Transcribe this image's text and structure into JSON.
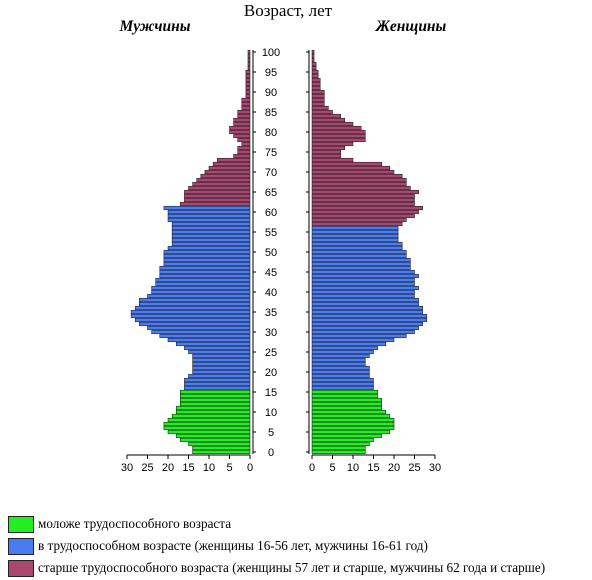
{
  "chart_data": {
    "type": "bar",
    "title": "Возраст, лет",
    "left_label": "Мужчины",
    "right_label": "Женщины",
    "xlim": [
      0,
      30
    ],
    "x_ticks": [
      0,
      5,
      10,
      15,
      20,
      25,
      30
    ],
    "age_ticks": [
      0,
      5,
      10,
      15,
      20,
      25,
      30,
      35,
      40,
      45,
      50,
      55,
      60,
      65,
      70,
      75,
      80,
      85,
      90,
      95,
      100
    ],
    "ages": [
      0,
      1,
      2,
      3,
      4,
      5,
      6,
      7,
      8,
      9,
      10,
      11,
      12,
      13,
      14,
      15,
      16,
      17,
      18,
      19,
      20,
      21,
      22,
      23,
      24,
      25,
      26,
      27,
      28,
      29,
      30,
      31,
      32,
      33,
      34,
      35,
      36,
      37,
      38,
      39,
      40,
      41,
      42,
      43,
      44,
      45,
      46,
      47,
      48,
      49,
      50,
      51,
      52,
      53,
      54,
      55,
      56,
      57,
      58,
      59,
      60,
      61,
      62,
      63,
      64,
      65,
      66,
      67,
      68,
      69,
      70,
      71,
      72,
      73,
      74,
      75,
      76,
      77,
      78,
      79,
      80,
      81,
      82,
      83,
      84,
      85,
      86,
      87,
      88,
      89,
      90,
      91,
      92,
      93,
      94,
      95,
      96,
      97,
      98,
      99,
      100
    ],
    "series": [
      {
        "name": "Мужчины",
        "values": [
          14,
          14,
          15,
          17,
          18,
          20,
          21,
          21,
          20,
          19,
          18,
          18,
          17,
          17,
          17,
          17,
          16,
          16,
          16,
          15,
          14,
          14,
          14,
          14,
          14,
          15,
          16,
          18,
          20,
          22,
          24,
          25,
          27,
          28,
          29,
          29,
          28,
          27,
          27,
          25,
          24,
          24,
          23,
          23,
          22,
          22,
          22,
          21,
          21,
          21,
          21,
          20,
          19,
          19,
          19,
          19,
          19,
          19,
          20,
          20,
          20,
          21,
          17,
          16,
          16,
          16,
          15,
          14,
          13,
          12,
          11,
          10,
          9,
          8,
          4,
          3,
          3,
          2,
          3,
          4,
          5,
          5,
          4,
          4,
          3,
          3,
          2,
          2,
          2,
          1,
          1,
          1,
          1,
          1,
          1,
          1,
          0.5,
          0.5,
          0.5,
          0.5,
          0.5
        ]
      },
      {
        "name": "Женщины",
        "values": [
          13,
          13,
          14,
          15,
          17,
          19,
          20,
          20,
          20,
          19,
          18,
          17,
          17,
          17,
          16,
          16,
          15,
          15,
          15,
          14,
          14,
          14,
          13,
          13,
          14,
          15,
          16,
          18,
          20,
          23,
          25,
          26,
          27,
          28,
          28,
          27,
          27,
          26,
          26,
          25,
          25,
          26,
          25,
          25,
          26,
          25,
          24,
          24,
          24,
          23,
          23,
          22,
          22,
          21,
          21,
          21,
          21,
          22,
          23,
          25,
          26,
          27,
          25,
          25,
          25,
          26,
          24,
          23,
          23,
          22,
          20,
          19,
          17,
          10,
          7,
          7,
          8,
          10,
          13,
          13,
          13,
          12,
          10,
          8,
          7,
          5,
          4,
          3,
          3,
          3,
          3,
          2,
          2,
          2,
          1.5,
          1.5,
          1,
          1,
          0.5,
          0.5,
          0.5
        ]
      }
    ],
    "groups": [
      {
        "label": "моложе трудоспособного возраста",
        "color": "#22ee22"
      },
      {
        "label": "в трудоспособном возрасте (женщины 16-56 лет, мужчины 16-61 год)",
        "color": "#4a7bf0"
      },
      {
        "label": "старше трудоспособного возраста (женщины 57 лет и старше, мужчины 62 года и старше)",
        "color": "#a84870"
      }
    ],
    "working_age": {
      "male_from": 16,
      "male_to": 61,
      "female_from": 16,
      "female_to": 56
    }
  }
}
